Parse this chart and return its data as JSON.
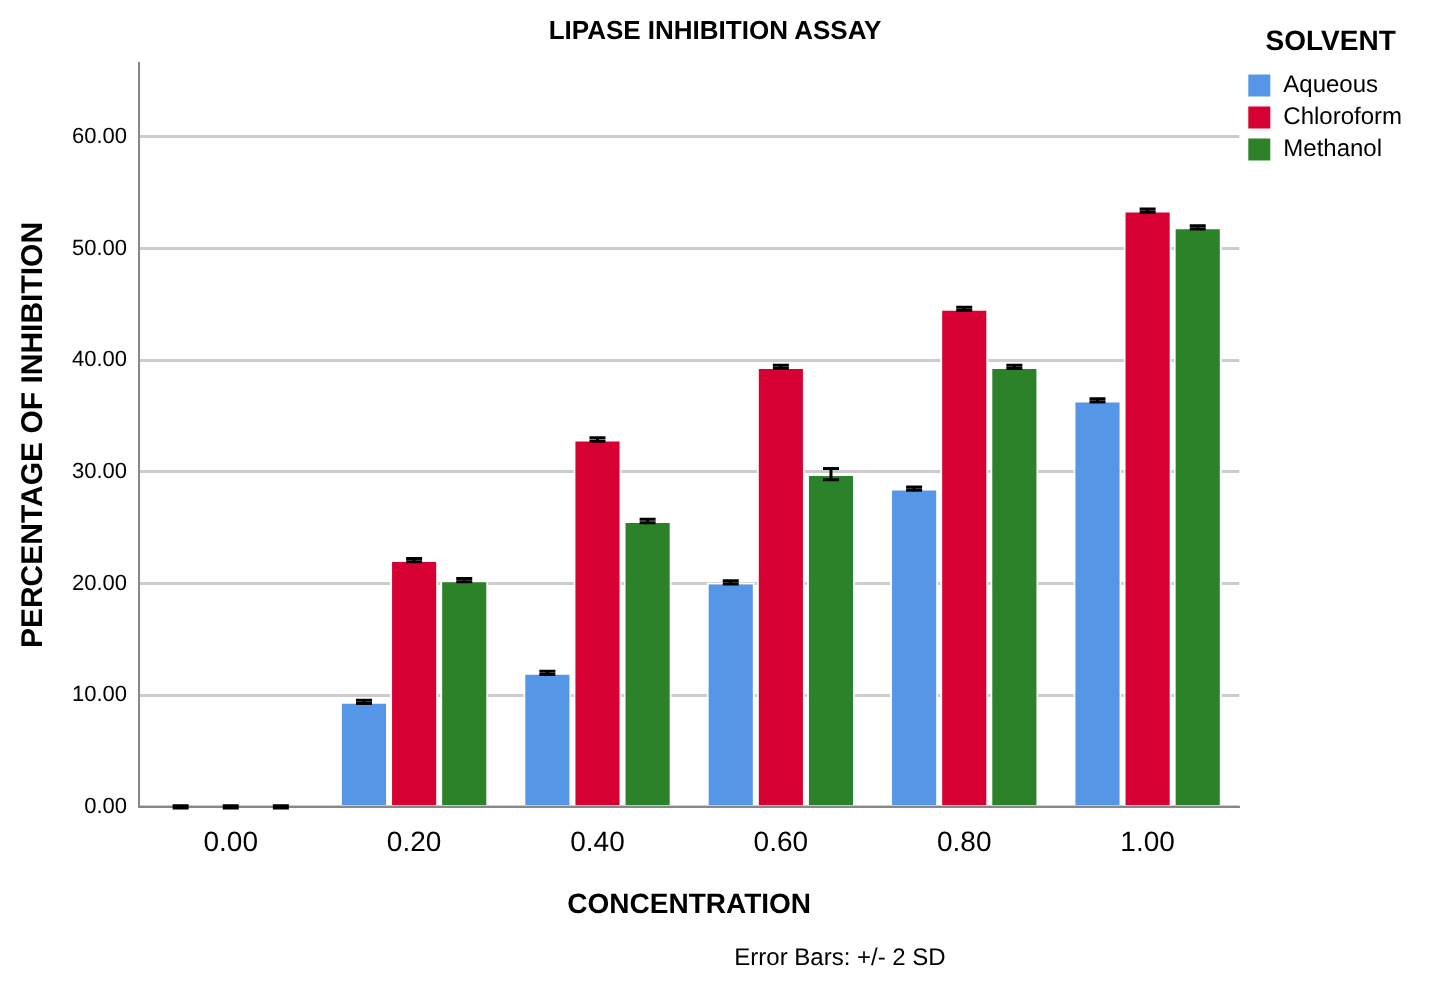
{
  "chart_data": {
    "type": "bar",
    "title": "LIPASE INHIBITION ASSAY",
    "xlabel": "CONCENTRATION",
    "ylabel": "PERCENTAGE OF INHIBITION",
    "legend_title": "SOLVENT",
    "legend": "top right",
    "grid": "y",
    "categories": [
      "0.00",
      "0.20",
      "0.40",
      "0.60",
      "0.80",
      "1.00"
    ],
    "series": [
      {
        "name": "Aqueous",
        "color": "#5596e6",
        "values": [
          0,
          9.4,
          12.0,
          20.1,
          28.5,
          36.4
        ],
        "errors": [
          0.1,
          0.15,
          0.15,
          0.15,
          0.15,
          0.15
        ]
      },
      {
        "name": "Chloroform",
        "color": "#d60032",
        "values": [
          0,
          22.1,
          32.9,
          39.4,
          44.6,
          53.4
        ],
        "errors": [
          0.1,
          0.15,
          0.15,
          0.15,
          0.15,
          0.15
        ]
      },
      {
        "name": "Methanol",
        "color": "#2b8229",
        "values": [
          0,
          20.3,
          25.6,
          29.8,
          39.4,
          51.9
        ],
        "errors": [
          0.1,
          0.15,
          0.15,
          0.5,
          0.15,
          0.15
        ]
      }
    ],
    "ylim": [
      0,
      66.6
    ],
    "yticks": [
      {
        "value": 0,
        "label": "0.00"
      },
      {
        "value": 10,
        "label": "10.00"
      },
      {
        "value": 20,
        "label": "20.00"
      },
      {
        "value": 30,
        "label": "30.00"
      },
      {
        "value": 40,
        "label": "40.00"
      },
      {
        "value": 50,
        "label": "50.00"
      },
      {
        "value": 60,
        "label": "60.00"
      }
    ],
    "annotations": [
      "Error Bars: +/- 2 SD"
    ]
  }
}
